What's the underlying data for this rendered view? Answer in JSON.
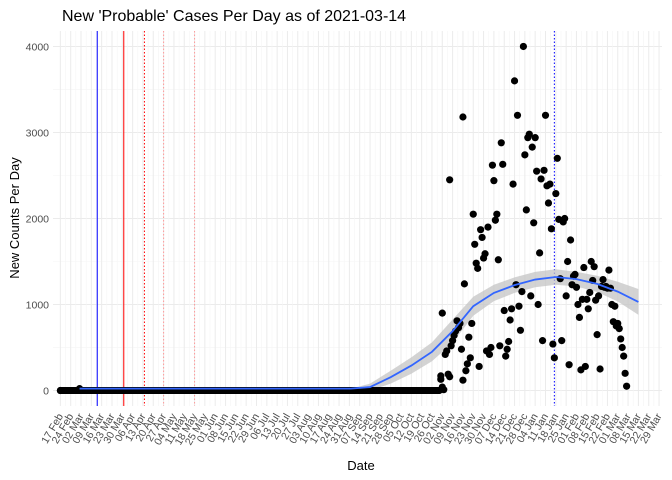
{
  "chart_data": {
    "type": "scatter",
    "title": "New 'Probable' Cases Per Day as of 2021-03-14",
    "xlabel": "Date",
    "ylabel": "New Counts Per Day",
    "ylim": [
      -180,
      4180
    ],
    "xlim": [
      "2020-02-12",
      "2021-03-31"
    ],
    "y_ticks": [
      0,
      1000,
      2000,
      3000,
      4000
    ],
    "x_ticks": [
      "2020-02-17",
      "2020-02-24",
      "2020-03-02",
      "2020-03-09",
      "2020-03-16",
      "2020-03-23",
      "2020-03-30",
      "2020-04-06",
      "2020-04-13",
      "2020-04-20",
      "2020-04-27",
      "2020-05-04",
      "2020-05-11",
      "2020-05-18",
      "2020-05-25",
      "2020-06-01",
      "2020-06-08",
      "2020-06-15",
      "2020-06-22",
      "2020-06-29",
      "2020-07-06",
      "2020-07-13",
      "2020-07-20",
      "2020-07-27",
      "2020-08-03",
      "2020-08-10",
      "2020-08-17",
      "2020-08-24",
      "2020-08-31",
      "2020-09-07",
      "2020-09-14",
      "2020-09-21",
      "2020-09-28",
      "2020-10-05",
      "2020-10-12",
      "2020-10-19",
      "2020-10-26",
      "2020-11-02",
      "2020-11-09",
      "2020-11-16",
      "2020-11-23",
      "2020-11-30",
      "2020-12-07",
      "2020-12-14",
      "2020-12-21",
      "2020-12-28",
      "2021-01-04",
      "2021-01-11",
      "2021-01-18",
      "2021-01-25",
      "2021-02-01",
      "2021-02-08",
      "2021-02-15",
      "2021-02-22",
      "2021-03-01",
      "2021-03-08",
      "2021-03-15",
      "2021-03-22",
      "2021-03-29"
    ],
    "x_tick_labels": [
      "17 Feb",
      "24 Feb",
      "02 Mar",
      "09 Mar",
      "16 Mar",
      "23 Mar",
      "30 Mar",
      "06 Apr",
      "13 Apr",
      "20 Apr",
      "27 Apr",
      "04 May",
      "11 May",
      "18 May",
      "25 May",
      "01 Jun",
      "08 Jun",
      "15 Jun",
      "22 Jun",
      "29 Jun",
      "06 Jul",
      "13 Jul",
      "20 Jul",
      "27 Jul",
      "03 Aug",
      "10 Aug",
      "17 Aug",
      "24 Aug",
      "31 Aug",
      "07 Sep",
      "14 Sep",
      "21 Sep",
      "28 Sep",
      "05 Oct",
      "12 Oct",
      "19 Oct",
      "26 Oct",
      "02 Nov",
      "09 Nov",
      "16 Nov",
      "23 Nov",
      "30 Nov",
      "07 Dec",
      "14 Dec",
      "21 Dec",
      "28 Dec",
      "04 Jan",
      "11 Jan",
      "18 Jan",
      "25 Jan",
      "01 Feb",
      "08 Feb",
      "15 Feb",
      "22 Feb",
      "01 Mar",
      "08 Mar",
      "15 Mar",
      "22 Mar",
      "29 Mar"
    ],
    "vlines": [
      {
        "x": "2020-03-13",
        "color": "#0000ff",
        "style": "solid"
      },
      {
        "x": "2020-03-31",
        "color": "#ff0000",
        "style": "solid"
      },
      {
        "x": "2020-04-14",
        "color": "#ff0000",
        "style": "dotted"
      },
      {
        "x": "2020-04-27",
        "color": "#ff9999",
        "style": "dotted"
      },
      {
        "x": "2020-05-18",
        "color": "#ff9999",
        "style": "dotted"
      },
      {
        "x": "2021-01-17",
        "color": "#0000ff",
        "style": "dotted"
      }
    ],
    "flat_segment": {
      "x_start": "2020-02-17",
      "x_end": "2020-10-31",
      "y": 0
    },
    "smooth": {
      "color": "#3366ff",
      "band_color": "#c4c4c4",
      "x": [
        "2020-03-01",
        "2020-04-01",
        "2020-05-01",
        "2020-06-01",
        "2020-07-01",
        "2020-08-01",
        "2020-09-01",
        "2020-09-14",
        "2020-09-28",
        "2020-10-12",
        "2020-10-26",
        "2020-11-09",
        "2020-11-23",
        "2020-12-07",
        "2020-12-21",
        "2021-01-04",
        "2021-01-18",
        "2021-02-01",
        "2021-02-15",
        "2021-03-01",
        "2021-03-15"
      ],
      "y": [
        22,
        22,
        22,
        22,
        22,
        22,
        22,
        40,
        155,
        290,
        450,
        690,
        980,
        1135,
        1225,
        1290,
        1320,
        1295,
        1240,
        1150,
        1030
      ],
      "band": [
        0,
        0,
        0,
        0,
        0,
        0,
        0,
        40,
        75,
        95,
        110,
        135,
        110,
        95,
        90,
        90,
        90,
        85,
        95,
        115,
        150
      ]
    },
    "points": [
      [
        "2020-02-17",
        0
      ],
      [
        "2020-03-01",
        22
      ],
      [
        "2020-11-01",
        170
      ],
      [
        "2020-11-01",
        130
      ],
      [
        "2020-11-02",
        40
      ],
      [
        "2020-11-02",
        900
      ],
      [
        "2020-11-03",
        10
      ],
      [
        "2020-11-04",
        420
      ],
      [
        "2020-11-05",
        460
      ],
      [
        "2020-11-06",
        190
      ],
      [
        "2020-11-07",
        160
      ],
      [
        "2020-11-07",
        2450
      ],
      [
        "2020-11-08",
        520
      ],
      [
        "2020-11-09",
        580
      ],
      [
        "2020-11-10",
        640
      ],
      [
        "2020-11-11",
        690
      ],
      [
        "2020-11-12",
        810
      ],
      [
        "2020-11-13",
        730
      ],
      [
        "2020-11-14",
        780
      ],
      [
        "2020-11-15",
        480
      ],
      [
        "2020-11-16",
        3180
      ],
      [
        "2020-11-16",
        120
      ],
      [
        "2020-11-17",
        1240
      ],
      [
        "2020-11-18",
        230
      ],
      [
        "2020-11-19",
        310
      ],
      [
        "2020-11-20",
        620
      ],
      [
        "2020-11-21",
        380
      ],
      [
        "2020-11-22",
        780
      ],
      [
        "2020-11-23",
        2050
      ],
      [
        "2020-11-24",
        1700
      ],
      [
        "2020-11-25",
        1480
      ],
      [
        "2020-11-26",
        1420
      ],
      [
        "2020-11-27",
        280
      ],
      [
        "2020-11-28",
        1870
      ],
      [
        "2020-11-29",
        1780
      ],
      [
        "2020-11-30",
        1540
      ],
      [
        "2020-12-01",
        1590
      ],
      [
        "2020-12-02",
        460
      ],
      [
        "2020-12-03",
        1900
      ],
      [
        "2020-12-04",
        420
      ],
      [
        "2020-12-05",
        500
      ],
      [
        "2020-12-06",
        2620
      ],
      [
        "2020-12-07",
        2440
      ],
      [
        "2020-12-08",
        1980
      ],
      [
        "2020-12-09",
        2050
      ],
      [
        "2020-12-10",
        1520
      ],
      [
        "2020-12-11",
        520
      ],
      [
        "2020-12-12",
        2880
      ],
      [
        "2020-12-13",
        2630
      ],
      [
        "2020-12-14",
        930
      ],
      [
        "2020-12-15",
        400
      ],
      [
        "2020-12-16",
        480
      ],
      [
        "2020-12-17",
        570
      ],
      [
        "2020-12-18",
        820
      ],
      [
        "2020-12-19",
        950
      ],
      [
        "2020-12-20",
        2400
      ],
      [
        "2020-12-21",
        3600
      ],
      [
        "2020-12-22",
        1230
      ],
      [
        "2020-12-23",
        3200
      ],
      [
        "2020-12-24",
        980
      ],
      [
        "2020-12-25",
        700
      ],
      [
        "2020-12-26",
        1150
      ],
      [
        "2020-12-27",
        4000
      ],
      [
        "2020-12-28",
        2740
      ],
      [
        "2020-12-29",
        2100
      ],
      [
        "2020-12-30",
        2940
      ],
      [
        "2020-12-31",
        2980
      ],
      [
        "2021-01-01",
        1100
      ],
      [
        "2021-01-02",
        2830
      ],
      [
        "2021-01-03",
        1950
      ],
      [
        "2021-01-04",
        2940
      ],
      [
        "2021-01-05",
        2550
      ],
      [
        "2021-01-06",
        1000
      ],
      [
        "2021-01-07",
        1600
      ],
      [
        "2021-01-08",
        2460
      ],
      [
        "2021-01-09",
        580
      ],
      [
        "2021-01-10",
        2560
      ],
      [
        "2021-01-11",
        3200
      ],
      [
        "2021-01-12",
        2380
      ],
      [
        "2021-01-13",
        2180
      ],
      [
        "2021-01-14",
        2400
      ],
      [
        "2021-01-15",
        1880
      ],
      [
        "2021-01-16",
        540
      ],
      [
        "2021-01-17",
        380
      ],
      [
        "2021-01-18",
        2290
      ],
      [
        "2021-01-19",
        2700
      ],
      [
        "2021-01-20",
        1990
      ],
      [
        "2021-01-21",
        1300
      ],
      [
        "2021-01-22",
        580
      ],
      [
        "2021-01-23",
        1960
      ],
      [
        "2021-01-24",
        2000
      ],
      [
        "2021-01-25",
        1100
      ],
      [
        "2021-01-26",
        1500
      ],
      [
        "2021-01-27",
        300
      ],
      [
        "2021-01-28",
        1750
      ],
      [
        "2021-01-29",
        1230
      ],
      [
        "2021-01-30",
        1330
      ],
      [
        "2021-01-31",
        1350
      ],
      [
        "2021-02-01",
        1200
      ],
      [
        "2021-02-02",
        1000
      ],
      [
        "2021-02-03",
        850
      ],
      [
        "2021-02-04",
        240
      ],
      [
        "2021-02-05",
        1060
      ],
      [
        "2021-02-06",
        1430
      ],
      [
        "2021-02-07",
        280
      ],
      [
        "2021-02-08",
        1060
      ],
      [
        "2021-02-09",
        950
      ],
      [
        "2021-02-10",
        1140
      ],
      [
        "2021-02-11",
        1500
      ],
      [
        "2021-02-12",
        1280
      ],
      [
        "2021-02-13",
        1440
      ],
      [
        "2021-02-14",
        1050
      ],
      [
        "2021-02-15",
        650
      ],
      [
        "2021-02-16",
        1100
      ],
      [
        "2021-02-17",
        250
      ],
      [
        "2021-02-18",
        1210
      ],
      [
        "2021-02-19",
        1290
      ],
      [
        "2021-02-20",
        1200
      ],
      [
        "2021-02-21",
        1210
      ],
      [
        "2021-02-22",
        1190
      ],
      [
        "2021-02-23",
        1400
      ],
      [
        "2021-02-24",
        1190
      ],
      [
        "2021-02-25",
        1000
      ],
      [
        "2021-02-26",
        800
      ],
      [
        "2021-02-27",
        980
      ],
      [
        "2021-02-28",
        750
      ],
      [
        "2021-03-01",
        780
      ],
      [
        "2021-03-02",
        720
      ],
      [
        "2021-03-03",
        600
      ],
      [
        "2021-03-04",
        500
      ],
      [
        "2021-03-05",
        400
      ],
      [
        "2021-03-06",
        200
      ],
      [
        "2021-03-07",
        50
      ]
    ],
    "dense_zero_range": {
      "x_start": "2020-09-15",
      "x_end": "2020-10-31",
      "y": 0
    },
    "grid": true,
    "legend": "none",
    "point_color": "#000000",
    "colors": {
      "background": "#ffffff",
      "grid_major": "#ebebeb",
      "grid_minor": "#f5f5f5",
      "tick_text": "#4d4d4d"
    }
  }
}
